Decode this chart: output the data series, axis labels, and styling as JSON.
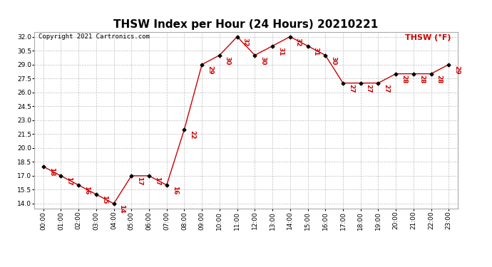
{
  "title": "THSW Index per Hour (24 Hours) 20210221",
  "copyright": "Copyright 2021 Cartronics.com",
  "legend_label": "THSW (°F)",
  "hours": [
    0,
    1,
    2,
    3,
    4,
    5,
    6,
    7,
    8,
    9,
    10,
    11,
    12,
    13,
    14,
    15,
    16,
    17,
    18,
    19,
    20,
    21,
    22,
    23
  ],
  "values": [
    18,
    17,
    16,
    15,
    14,
    17,
    17,
    16,
    22,
    29,
    30,
    32,
    30,
    31,
    32,
    31,
    30,
    27,
    27,
    27,
    28,
    28,
    28,
    29
  ],
  "xlabels": [
    "00:00",
    "01:00",
    "02:00",
    "03:00",
    "04:00",
    "05:00",
    "06:00",
    "07:00",
    "08:00",
    "09:00",
    "10:00",
    "11:00",
    "12:00",
    "13:00",
    "14:00",
    "15:00",
    "16:00",
    "17:00",
    "18:00",
    "19:00",
    "20:00",
    "21:00",
    "22:00",
    "23:00"
  ],
  "ylim": [
    13.5,
    32.5
  ],
  "yticks": [
    14.0,
    15.5,
    17.0,
    18.5,
    20.0,
    21.5,
    23.0,
    24.5,
    26.0,
    27.5,
    29.0,
    30.5,
    32.0
  ],
  "line_color": "#cc0000",
  "marker_color": "#000000",
  "background_color": "#ffffff",
  "grid_color": "#c0c0c0",
  "title_fontsize": 11,
  "copyright_fontsize": 6.5,
  "legend_fontsize": 8,
  "label_fontsize": 6.5,
  "tick_fontsize": 6.5
}
